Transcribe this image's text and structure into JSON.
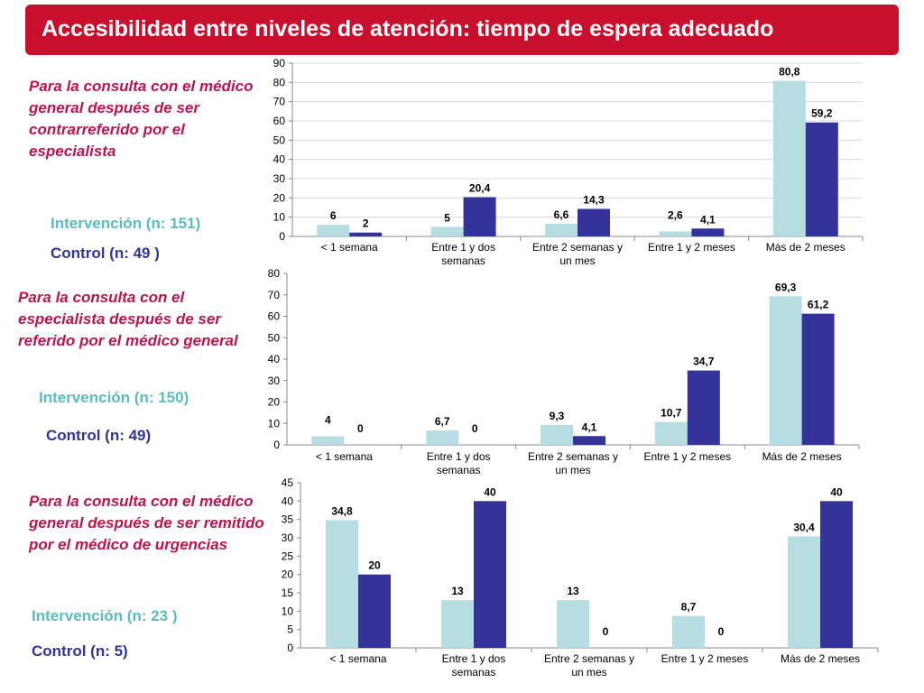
{
  "title": "Accesibilidad entre niveles de atención: tiempo de espera adecuado",
  "colors": {
    "title_bg": "#c8102e",
    "intervention": "#b6dde2",
    "control": "#333399",
    "description": "#c0134a",
    "intervention_text": "#5bbcc0",
    "control_text": "#31349a"
  },
  "panels": [
    {
      "description": "Para la consulta con el médico general después de ser contrarreferido por el especialista",
      "intervention_label": "Intervención (n: 151)",
      "control_label": "Control  (n: 49 )"
    },
    {
      "description": "Para la consulta con el especialista después de ser referido por el médico general",
      "intervention_label": "Intervención (n: 150)",
      "control_label": "Control  (n: 49)"
    },
    {
      "description": "Para la consulta con el médico general después de ser remitido por el médico de urgencias",
      "intervention_label": "Intervención (n: 23 )",
      "control_label": "Control  (n: 5)"
    }
  ],
  "chart_data": [
    {
      "type": "bar",
      "categories": [
        "< 1 semana",
        "Entre 1 y dos semanas",
        "Entre 2 semanas y un mes",
        "Entre 1 y 2 meses",
        "Más de 2 meses"
      ],
      "series": [
        {
          "name": "Intervención (n: 151)",
          "values": [
            6,
            5,
            6.6,
            2.6,
            80.8
          ],
          "labels": [
            "6",
            "5",
            "6,6",
            "2,6",
            "80,8"
          ]
        },
        {
          "name": "Control  (n: 49 )",
          "values": [
            2,
            20.4,
            14.3,
            4.1,
            59.2
          ],
          "labels": [
            "2",
            "20,4",
            "14,3",
            "4,1",
            "59,2"
          ]
        }
      ],
      "ylim": [
        0,
        90
      ],
      "ytick_step": 10,
      "grid": true,
      "legend": "left"
    },
    {
      "type": "bar",
      "categories": [
        "< 1 semana",
        "Entre 1 y dos semanas",
        "Entre 2 semanas y un mes",
        "Entre 1 y 2 meses",
        "Más de 2 meses"
      ],
      "series": [
        {
          "name": "Intervención (n: 150)",
          "values": [
            4,
            6.7,
            9.3,
            10.7,
            69.3
          ],
          "labels": [
            "4",
            "6,7",
            "9,3",
            "10,7",
            "69,3"
          ]
        },
        {
          "name": "Control  (n: 49)",
          "values": [
            0,
            0,
            4.1,
            34.7,
            61.2
          ],
          "labels": [
            "0",
            "0",
            "4,1",
            "34,7",
            "61,2"
          ]
        }
      ],
      "ylim": [
        0,
        80
      ],
      "ytick_step": 10,
      "grid": false,
      "legend": "left"
    },
    {
      "type": "bar",
      "categories": [
        "< 1 semana",
        "Entre 1 y dos semanas",
        "Entre 2 semanas y un mes",
        "Entre 1 y 2 meses",
        "Más de 2 meses"
      ],
      "series": [
        {
          "name": "Intervención (n: 23 )",
          "values": [
            34.8,
            13,
            13,
            8.7,
            30.4
          ],
          "labels": [
            "34,8",
            "13",
            "13",
            "8,7",
            "30,4"
          ]
        },
        {
          "name": "Control  (n: 5)",
          "values": [
            20,
            40,
            0,
            0,
            40
          ],
          "labels": [
            "20",
            "40",
            "0",
            "0",
            "40"
          ]
        }
      ],
      "ylim": [
        0,
        45
      ],
      "ytick_step": 5,
      "grid": false,
      "legend": "left"
    }
  ]
}
